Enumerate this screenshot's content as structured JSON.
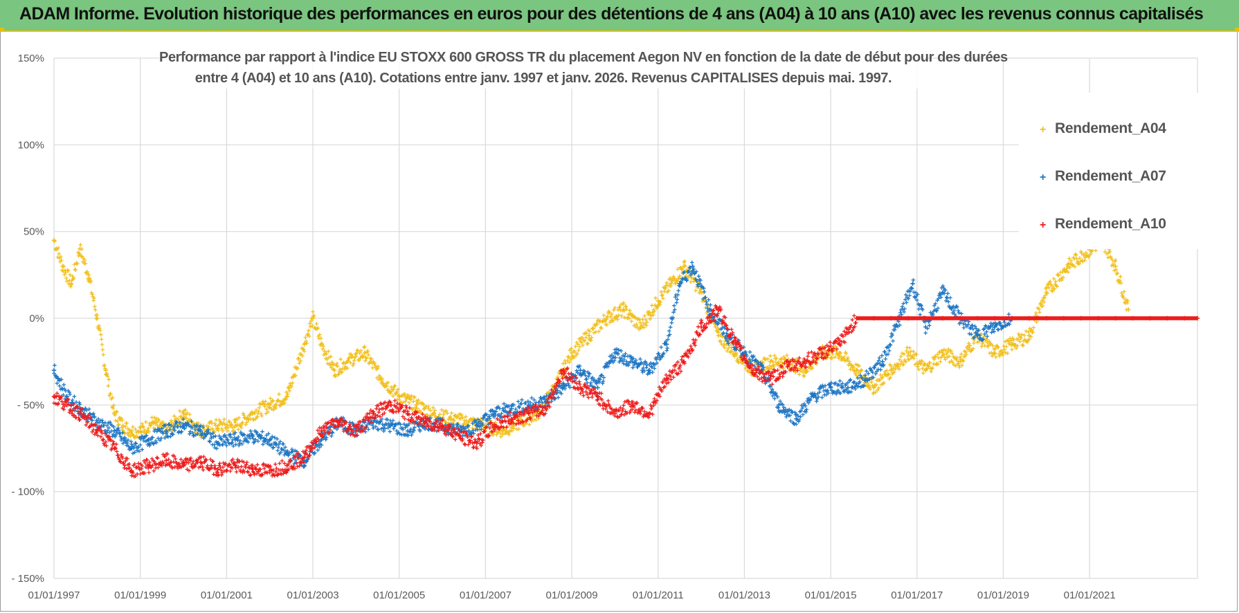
{
  "banner": {
    "title": "ADAM Informe. Evolution historique des performances en euros pour des détentions de 4 ans (A04) à 10 ans (A10) avec les revenus connus capitalisés"
  },
  "colors": {
    "banner_bg": "#7ac57f",
    "accent": "#e8c000",
    "A04": "#f2c01e",
    "A07": "#1f77c4",
    "A10": "#ee1c1c",
    "grid": "#d9d9d9"
  },
  "chart_data": {
    "type": "scatter",
    "title_line1": "Performance par rapport à l'indice EU STOXX 600 GROSS TR  du placement Aegon NV en fonction de la date de début pour des durées",
    "title_line2": "entre 4 (A04) et 10 ans (A10).  Cotations entre janv. 1997 et janv. 2026. Revenus CAPITALISES depuis mai. 1997.",
    "xlabel": "",
    "ylabel": "",
    "xlim": [
      1997.0,
      2023.5
    ],
    "ylim": [
      -150,
      150
    ],
    "y_ticks": [
      150,
      100,
      50,
      0,
      -50,
      -100,
      -150
    ],
    "y_tick_labels": [
      "150%",
      "100%",
      "50%",
      "0%",
      "- 50%",
      "- 100%",
      "- 150%"
    ],
    "x_ticks": [
      1997,
      1999,
      2001,
      2003,
      2005,
      2007,
      2009,
      2011,
      2013,
      2015,
      2017,
      2019,
      2021
    ],
    "x_tick_labels": [
      "01/01/1997",
      "01/01/1999",
      "01/01/2001",
      "01/01/2003",
      "01/01/2005",
      "01/01/2007",
      "01/01/2009",
      "01/01/2011",
      "01/01/2013",
      "01/01/2015",
      "01/01/2017",
      "01/01/2019",
      "01/01/2021"
    ],
    "legend_position": "top-right",
    "series": [
      {
        "name": "Rendement_A04",
        "key": "A04",
        "x": [
          1997.0,
          1997.2,
          1997.4,
          1997.6,
          1997.8,
          1998.0,
          1998.2,
          1998.4,
          1998.6,
          1998.8,
          1999.0,
          1999.3,
          1999.6,
          2000.0,
          2000.4,
          2000.8,
          2001.2,
          2001.6,
          2002.0,
          2002.4,
          2002.8,
          2003.0,
          2003.2,
          2003.5,
          2003.8,
          2004.2,
          2004.6,
          2005.0,
          2005.4,
          2005.8,
          2006.2,
          2006.6,
          2007.0,
          2007.4,
          2007.8,
          2008.2,
          2008.6,
          2009.0,
          2009.4,
          2009.8,
          2010.2,
          2010.6,
          2011.0,
          2011.3,
          2011.6,
          2012.0,
          2012.4,
          2012.8,
          2013.2,
          2013.6,
          2014.0,
          2014.4,
          2014.8,
          2015.2,
          2015.6,
          2016.0,
          2016.4,
          2016.8,
          2017.2,
          2017.6,
          2018.0,
          2018.4,
          2018.8,
          2019.2,
          2019.6,
          2020.0,
          2020.5,
          2021.3,
          2021.6,
          2021.9
        ],
        "y": [
          45,
          30,
          20,
          40,
          25,
          0,
          -30,
          -55,
          -62,
          -65,
          -65,
          -60,
          -65,
          -55,
          -65,
          -62,
          -62,
          -55,
          -50,
          -45,
          -15,
          0,
          -15,
          -30,
          -25,
          -20,
          -35,
          -45,
          -50,
          -55,
          -58,
          -60,
          -62,
          -65,
          -60,
          -55,
          -40,
          -20,
          -10,
          0,
          5,
          -5,
          10,
          20,
          30,
          15,
          -10,
          -20,
          -30,
          -25,
          -25,
          -30,
          -20,
          -20,
          -30,
          -40,
          -30,
          -20,
          -30,
          -20,
          -25,
          -10,
          -20,
          -15,
          -10,
          15,
          30,
          45,
          30,
          5
        ]
      },
      {
        "name": "Rendement_A07",
        "key": "A07",
        "x": [
          1997.0,
          1997.3,
          1997.6,
          1998.0,
          1998.4,
          1998.8,
          1999.2,
          1999.6,
          2000.0,
          2000.4,
          2000.8,
          2001.2,
          2001.6,
          2002.0,
          2002.4,
          2002.8,
          2003.2,
          2003.6,
          2004.0,
          2004.4,
          2004.8,
          2005.2,
          2005.6,
          2006.0,
          2006.4,
          2006.8,
          2007.2,
          2007.6,
          2008.0,
          2008.4,
          2008.8,
          2009.2,
          2009.6,
          2010.0,
          2010.4,
          2010.8,
          2011.2,
          2011.5,
          2011.8,
          2012.2,
          2012.6,
          2013.0,
          2013.4,
          2013.8,
          2014.2,
          2014.6,
          2015.0,
          2015.4,
          2015.8,
          2016.2,
          2016.6,
          2016.9,
          2017.2,
          2017.6,
          2018.0,
          2018.4,
          2018.8,
          2019.2
        ],
        "y": [
          -30,
          -45,
          -52,
          -60,
          -65,
          -75,
          -70,
          -65,
          -62,
          -65,
          -72,
          -70,
          -68,
          -70,
          -78,
          -82,
          -70,
          -60,
          -65,
          -60,
          -62,
          -65,
          -60,
          -62,
          -65,
          -62,
          -55,
          -52,
          -50,
          -48,
          -40,
          -30,
          -40,
          -20,
          -25,
          -30,
          -15,
          20,
          30,
          5,
          -10,
          -20,
          -30,
          -50,
          -58,
          -45,
          -40,
          -40,
          -35,
          -25,
          0,
          20,
          -5,
          15,
          0,
          -10,
          -5,
          0
        ]
      },
      {
        "name": "Rendement_A10",
        "key": "A10",
        "x": [
          1997.0,
          1997.3,
          1997.6,
          1998.0,
          1998.4,
          1998.8,
          1999.2,
          1999.6,
          2000.0,
          2000.4,
          2000.8,
          2001.2,
          2001.6,
          2002.0,
          2002.4,
          2002.8,
          2003.2,
          2003.6,
          2004.0,
          2004.4,
          2004.8,
          2005.2,
          2005.6,
          2006.0,
          2006.4,
          2006.8,
          2007.2,
          2007.6,
          2008.0,
          2008.4,
          2008.8,
          2009.2,
          2009.6,
          2010.0,
          2010.4,
          2010.8,
          2011.2,
          2011.6,
          2012.0,
          2012.4,
          2012.8,
          2013.2,
          2013.6,
          2014.0,
          2014.4,
          2014.8,
          2015.2,
          2015.6,
          2016.0,
          2016.4,
          2016.8,
          2017.2,
          2017.6,
          2018.0,
          2018.4,
          2018.8,
          2019.2,
          2019.6,
          2020.0,
          2020.4,
          2020.8,
          2021.2,
          2021.6,
          2022.0,
          2022.4,
          2022.8,
          2023.2,
          2023.5
        ],
        "y": [
          -45,
          -50,
          -55,
          -65,
          -75,
          -88,
          -85,
          -82,
          -85,
          -83,
          -87,
          -85,
          -87,
          -88,
          -85,
          -80,
          -65,
          -60,
          -65,
          -55,
          -50,
          -55,
          -60,
          -62,
          -68,
          -72,
          -62,
          -58,
          -55,
          -52,
          -30,
          -40,
          -45,
          -55,
          -50,
          -55,
          -35,
          -25,
          -5,
          5,
          -15,
          -30,
          -35,
          -28,
          -25,
          -20,
          -15,
          0,
          0,
          0,
          0,
          0,
          0,
          0,
          0,
          0,
          0,
          0,
          0,
          0,
          0,
          0,
          0,
          0,
          0,
          0,
          0,
          0
        ]
      }
    ]
  }
}
